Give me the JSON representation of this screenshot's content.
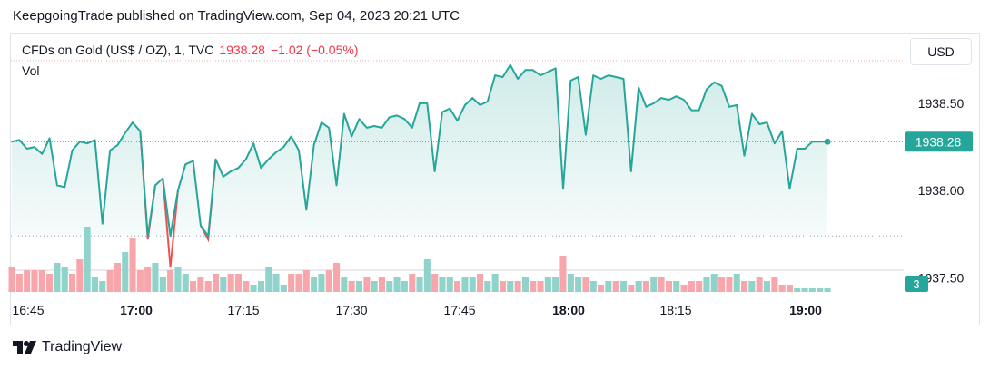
{
  "header": {
    "published": "KeepgoingTrade published on TradingView.com, Sep 04, 2023 20:21 UTC"
  },
  "legend": {
    "symbol": "CFDs on Gold (US$ / OZ), 1, TVC",
    "price": "1938.28",
    "change": "−1.02 (−0.05%)",
    "volume_label": "Vol"
  },
  "currency_button": "USD",
  "footer": {
    "brand": "TradingView"
  },
  "colors": {
    "line": "#26a69a",
    "line_down": "#ef5350",
    "vol_up": "#8fd3cb",
    "vol_down": "#f7a6ab",
    "price_badge": "#26a69a"
  },
  "chart_data": {
    "type": "area",
    "y_ticks": [
      "1938.50",
      "1938.00",
      "1937.50"
    ],
    "y_tick_values": [
      1938.5,
      1938.0,
      1937.5
    ],
    "x_ticks": [
      {
        "label": "16:45",
        "bold": false
      },
      {
        "label": "17:00",
        "bold": true
      },
      {
        "label": "17:15",
        "bold": false
      },
      {
        "label": "17:30",
        "bold": false
      },
      {
        "label": "17:45",
        "bold": false
      },
      {
        "label": "18:00",
        "bold": true
      },
      {
        "label": "18:15",
        "bold": false
      },
      {
        "label": "19:00",
        "bold": true
      }
    ],
    "last_price": {
      "label": "1938.28",
      "value": 1938.28
    },
    "volume_badge": "3",
    "y_range": [
      1937.43,
      1938.78
    ],
    "price_series": [
      1938.28,
      1938.29,
      1938.24,
      1938.25,
      1938.21,
      1938.3,
      1938.03,
      1938.02,
      1938.23,
      1938.28,
      1938.27,
      1938.29,
      1937.81,
      1938.23,
      1938.26,
      1938.33,
      1938.39,
      1938.34,
      1937.72,
      1938.03,
      1938.07,
      1937.56,
      1938.0,
      1938.15,
      1938.17,
      1937.8,
      1937.72,
      1938.18,
      1938.08,
      1938.11,
      1938.13,
      1938.18,
      1938.27,
      1938.13,
      1938.18,
      1938.22,
      1938.25,
      1938.31,
      1938.23,
      1937.89,
      1938.26,
      1938.39,
      1938.36,
      1938.03,
      1938.44,
      1938.31,
      1938.41,
      1938.36,
      1938.37,
      1938.36,
      1938.42,
      1938.43,
      1938.41,
      1938.36,
      1938.5,
      1938.5,
      1938.11,
      1938.45,
      1938.47,
      1938.4,
      1938.49,
      1938.53,
      1938.49,
      1938.51,
      1938.66,
      1938.65,
      1938.72,
      1938.64,
      1938.69,
      1938.69,
      1938.66,
      1938.68,
      1938.7,
      1938.01,
      1938.63,
      1938.65,
      1938.32,
      1938.66,
      1938.64,
      1938.66,
      1938.65,
      1938.64,
      1938.11,
      1938.59,
      1938.48,
      1938.5,
      1938.53,
      1938.52,
      1938.54,
      1938.52,
      1938.46,
      1938.46,
      1938.58,
      1938.62,
      1938.6,
      1938.48,
      1938.49,
      1938.2,
      1938.44,
      1938.38,
      1938.39,
      1938.27,
      1938.34,
      1938.01,
      1938.24,
      1938.24,
      1938.28,
      1938.28,
      1938.28
    ],
    "volume_series": [
      7,
      5,
      6,
      6,
      6,
      5,
      8,
      7,
      5,
      9,
      18,
      4,
      3,
      6,
      8,
      11,
      15,
      6,
      7,
      8,
      4,
      6,
      7,
      5,
      3,
      4,
      3,
      5,
      4,
      5,
      5,
      3,
      2,
      3,
      7,
      5,
      2,
      5,
      5,
      6,
      4,
      5,
      6,
      8,
      4,
      3,
      3,
      4,
      3,
      4,
      3,
      4,
      3,
      5,
      4,
      9,
      5,
      4,
      4,
      3,
      4,
      4,
      5,
      3,
      5,
      3,
      3,
      3,
      4,
      3,
      3,
      4,
      4,
      10,
      5,
      4,
      4,
      3,
      2,
      3,
      3,
      3,
      2,
      3,
      3,
      4,
      4,
      3,
      3,
      2,
      3,
      3,
      4,
      5,
      4,
      4,
      5,
      3,
      3,
      4,
      3,
      4,
      2,
      2,
      1,
      1,
      1,
      1,
      1
    ],
    "volume_up": [
      0,
      0,
      0,
      0,
      0,
      0,
      1,
      1,
      0,
      0,
      1,
      1,
      1,
      0,
      0,
      1,
      0,
      0,
      0,
      1,
      1,
      0,
      1,
      1,
      0,
      0,
      0,
      0,
      1,
      0,
      0,
      0,
      1,
      1,
      1,
      1,
      1,
      0,
      0,
      0,
      1,
      1,
      0,
      0,
      1,
      0,
      1,
      0,
      1,
      0,
      1,
      1,
      1,
      0,
      1,
      1,
      0,
      1,
      1,
      0,
      1,
      1,
      0,
      1,
      1,
      0,
      1,
      0,
      1,
      0,
      0,
      1,
      1,
      0,
      1,
      1,
      0,
      1,
      0,
      1,
      0,
      1,
      0,
      1,
      0,
      1,
      0,
      0,
      1,
      0,
      0,
      0,
      1,
      1,
      0,
      0,
      1,
      0,
      1,
      0,
      1,
      0,
      0,
      0,
      1,
      1,
      1,
      1,
      1
    ]
  }
}
